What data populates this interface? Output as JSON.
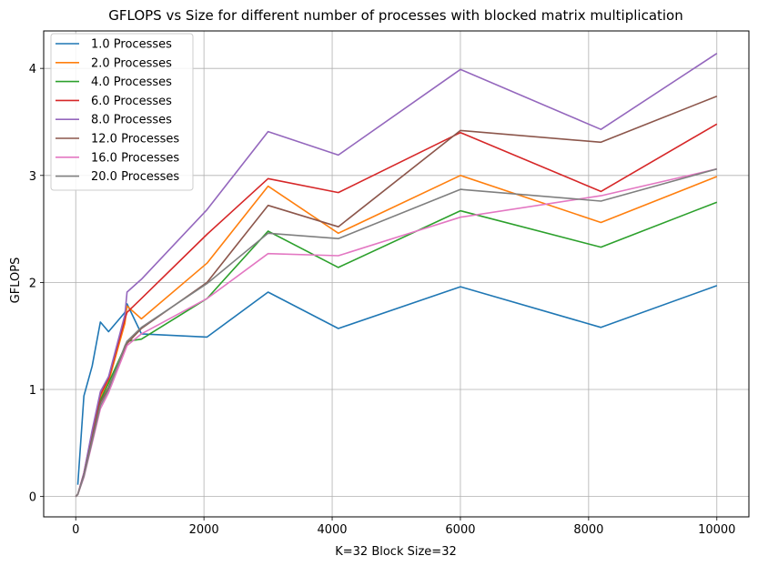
{
  "chart_data": {
    "type": "line",
    "title": "GFLOPS vs Size for different number of processes with blocked matrix multiplication",
    "xlabel": "K=32 Block Size=32",
    "ylabel": "GFLOPS",
    "xlim": [
      -500,
      10500
    ],
    "ylim": [
      -0.19,
      4.35
    ],
    "xticks": [
      0,
      2000,
      4000,
      6000,
      8000,
      10000
    ],
    "xtick_labels": [
      "0",
      "2000",
      "4000",
      "6000",
      "8000",
      "10000"
    ],
    "yticks": [
      0,
      1,
      2,
      3,
      4
    ],
    "ytick_labels": [
      "0",
      "1",
      "2",
      "3",
      "4"
    ],
    "grid": true,
    "legend_position": "top-left",
    "series": [
      {
        "name": "1.0 Processes",
        "color": "#1f77b4",
        "x": [
          32,
          128,
          256,
          384,
          512,
          768,
          800,
          1024,
          2048,
          3000,
          4096,
          6000,
          8192,
          10000
        ],
        "y": [
          0.11,
          0.94,
          1.22,
          1.63,
          1.54,
          1.72,
          1.8,
          1.52,
          1.49,
          1.91,
          1.57,
          1.96,
          1.58,
          1.97
        ]
      },
      {
        "name": "2.0 Processes",
        "color": "#ff7f0e",
        "x": [
          0,
          32,
          128,
          256,
          384,
          512,
          768,
          800,
          1024,
          2048,
          3000,
          4096,
          6000,
          8192,
          10000
        ],
        "y": [
          0,
          0.02,
          0.2,
          0.56,
          0.92,
          1.07,
          1.62,
          1.78,
          1.66,
          2.18,
          2.9,
          2.46,
          3.0,
          2.56,
          2.99
        ]
      },
      {
        "name": "4.0 Processes",
        "color": "#2ca02c",
        "x": [
          0,
          32,
          128,
          256,
          384,
          512,
          768,
          800,
          1024,
          2048,
          3000,
          4096,
          6000,
          8192,
          10000
        ],
        "y": [
          0,
          0.02,
          0.2,
          0.55,
          0.9,
          1.06,
          1.4,
          1.45,
          1.47,
          1.85,
          2.48,
          2.14,
          2.67,
          2.33,
          2.75
        ]
      },
      {
        "name": "6.0 Processes",
        "color": "#d62728",
        "x": [
          0,
          32,
          128,
          256,
          384,
          512,
          768,
          800,
          1024,
          2048,
          3000,
          4096,
          6000,
          8192,
          10000
        ],
        "y": [
          0,
          0.02,
          0.22,
          0.6,
          0.95,
          1.1,
          1.66,
          1.72,
          1.85,
          2.45,
          2.97,
          2.84,
          3.4,
          2.85,
          3.48
        ]
      },
      {
        "name": "8.0 Processes",
        "color": "#9467bd",
        "x": [
          0,
          32,
          128,
          256,
          384,
          512,
          768,
          800,
          1024,
          2048,
          3000,
          4096,
          6000,
          8192,
          10000
        ],
        "y": [
          0,
          0.02,
          0.22,
          0.62,
          0.98,
          1.12,
          1.7,
          1.91,
          2.03,
          2.68,
          3.41,
          3.19,
          3.99,
          3.43,
          4.14
        ]
      },
      {
        "name": "12.0 Processes",
        "color": "#8c564b",
        "x": [
          0,
          32,
          128,
          256,
          384,
          512,
          768,
          800,
          1024,
          2048,
          3000,
          4096,
          6000,
          8192,
          10000
        ],
        "y": [
          0,
          0.02,
          0.2,
          0.55,
          0.88,
          1.02,
          1.38,
          1.43,
          1.57,
          2.0,
          2.72,
          2.52,
          3.42,
          3.31,
          3.74
        ]
      },
      {
        "name": "16.0 Processes",
        "color": "#e377c2",
        "x": [
          0,
          32,
          128,
          256,
          384,
          512,
          768,
          800,
          1024,
          2048,
          3000,
          4096,
          6000,
          8192,
          10000
        ],
        "y": [
          0,
          0.02,
          0.18,
          0.5,
          0.82,
          0.97,
          1.36,
          1.41,
          1.52,
          1.85,
          2.27,
          2.25,
          2.61,
          2.81,
          3.06
        ]
      },
      {
        "name": "20.0 Processes",
        "color": "#7f7f7f",
        "x": [
          0,
          32,
          128,
          256,
          384,
          512,
          768,
          800,
          1024,
          2048,
          3000,
          4096,
          6000,
          8192,
          10000
        ],
        "y": [
          0,
          0.02,
          0.19,
          0.52,
          0.85,
          1.0,
          1.41,
          1.45,
          1.58,
          1.99,
          2.46,
          2.41,
          2.87,
          2.76,
          3.06
        ]
      }
    ]
  }
}
